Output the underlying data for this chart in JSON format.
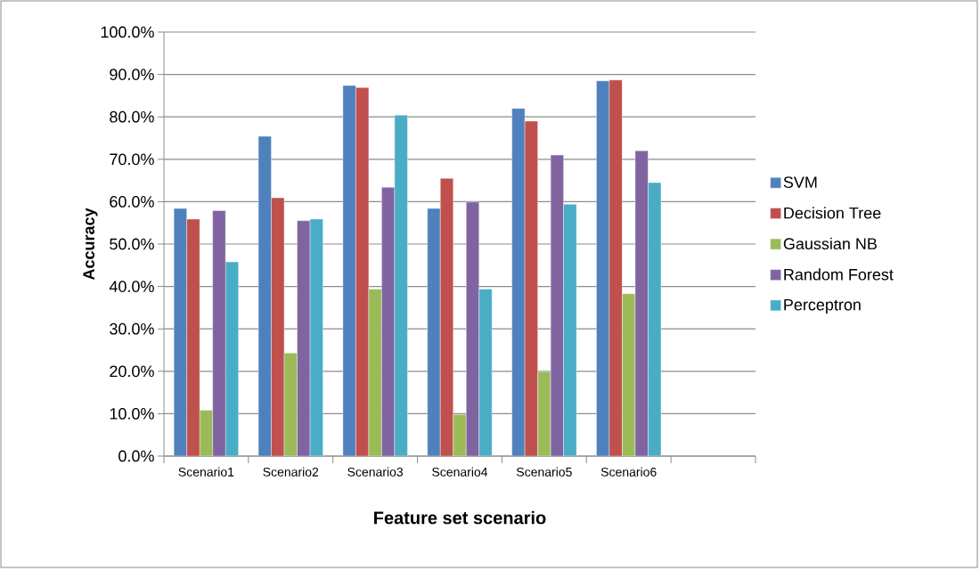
{
  "chart_data": {
    "type": "bar",
    "xlabel": "Feature set scenario",
    "ylabel": "Accuracy",
    "categories": [
      "Scenario1",
      "Scenario2",
      "Scenario3",
      "Scenario4",
      "Scenario5",
      "Scenario6",
      null
    ],
    "series": [
      {
        "name": "SVM",
        "color": "#4f81bd",
        "values": [
          58.4,
          75.4,
          87.4,
          58.4,
          82.0,
          88.5,
          null
        ]
      },
      {
        "name": "Decision Tree",
        "color": "#c0504d",
        "values": [
          55.9,
          60.9,
          86.9,
          65.5,
          79.0,
          88.7,
          null
        ]
      },
      {
        "name": "Gaussian NB",
        "color": "#9bbb59",
        "values": [
          10.8,
          24.3,
          39.4,
          9.8,
          19.9,
          38.3,
          null
        ]
      },
      {
        "name": "Random Forest",
        "color": "#8064a2",
        "values": [
          57.9,
          55.5,
          63.4,
          59.9,
          71.0,
          72.0,
          null
        ]
      },
      {
        "name": "Perceptron",
        "color": "#4bacc6",
        "values": [
          45.8,
          55.9,
          80.4,
          39.4,
          59.4,
          64.5,
          null
        ]
      }
    ],
    "ylim": [
      0,
      100
    ],
    "yticks": [
      {
        "value": 0,
        "label": "0.0%"
      },
      {
        "value": 10,
        "label": "10.0%"
      },
      {
        "value": 20,
        "label": "20.0%"
      },
      {
        "value": 30,
        "label": "30.0%"
      },
      {
        "value": 40,
        "label": "40.0%"
      },
      {
        "value": 50,
        "label": "50.0%"
      },
      {
        "value": 60,
        "label": "60.0%"
      },
      {
        "value": 70,
        "label": "70.0%"
      },
      {
        "value": 80,
        "label": "80.0%"
      },
      {
        "value": 90,
        "label": "90.0%"
      },
      {
        "value": 100,
        "label": "100.0%"
      }
    ],
    "grid": "y",
    "legend": "right"
  }
}
